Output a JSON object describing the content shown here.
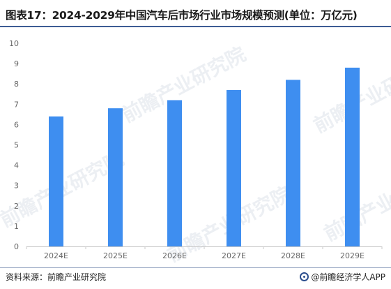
{
  "header": {
    "title": "图表17：2024-2029年中国汽车后市场行业市场规模预测(单位：万亿元)"
  },
  "footer": {
    "source": "资料来源：前瞻产业研究院",
    "brand": "@前瞻经济学人APP"
  },
  "watermark": {
    "text": "前瞻产业研究院"
  },
  "chart_data": {
    "type": "bar",
    "title": "图表17：2024-2029年中国汽车后市场行业市场规模预测(单位：万亿元)",
    "categories": [
      "2024E",
      "2025E",
      "2026E",
      "2027E",
      "2028E",
      "2029E"
    ],
    "values": [
      6.4,
      6.8,
      7.2,
      7.7,
      8.2,
      8.8
    ],
    "ylim": [
      0,
      10
    ],
    "yticks": [
      "0",
      "1",
      "2",
      "3",
      "4",
      "5",
      "6",
      "7",
      "8",
      "9",
      "10"
    ],
    "xlabel": "",
    "ylabel": "",
    "grid": false,
    "bar_color": "#3e8ef0",
    "axis_color": "#c8c8c8"
  }
}
